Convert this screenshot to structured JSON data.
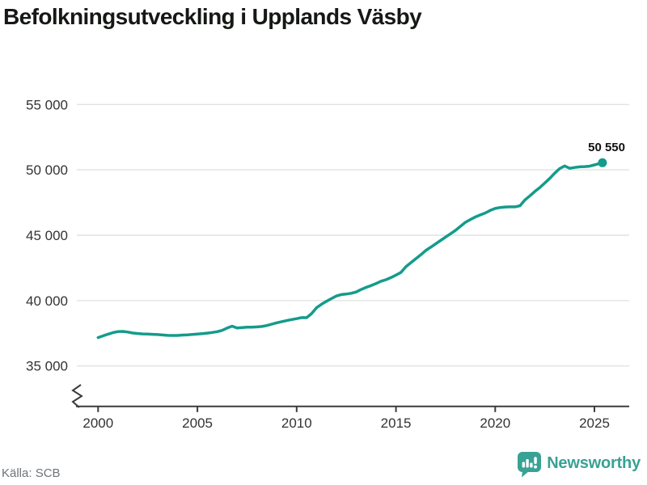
{
  "title": "Befolkningsutveckling i Upplands Väsby",
  "source": "Källa: SCB",
  "branding": {
    "name": "Newsworthy"
  },
  "colors": {
    "line": "#149b8b",
    "grid": "#e2e2e2",
    "axis": "#3b3b3b",
    "tick_text": "#333333",
    "title": "#151815",
    "value_label": "#111111",
    "source_text": "#6d747a",
    "brand": "#38a294"
  },
  "chart_data": {
    "type": "line",
    "title": "Befolkningsutveckling i Upplands Väsby",
    "xlabel": "",
    "ylabel": "",
    "grid": true,
    "axis_break_at_y_axis_bottom": true,
    "x_range": [
      2000,
      2025.4
    ],
    "ylim": [
      35000,
      55000
    ],
    "x_ticks": [
      2000,
      2005,
      2010,
      2015,
      2020,
      2025
    ],
    "x_tick_labels": [
      "2000",
      "2005",
      "2010",
      "2015",
      "2020",
      "2025"
    ],
    "y_ticks": [
      35000,
      40000,
      45000,
      50000,
      55000
    ],
    "y_tick_labels": [
      "35 000",
      "40 000",
      "45 000",
      "50 000",
      "55 000"
    ],
    "end_label": "50 550",
    "end_value": 50550,
    "points": [
      [
        2000,
        37170
      ],
      [
        2000.25,
        37300
      ],
      [
        2000.5,
        37430
      ],
      [
        2000.75,
        37550
      ],
      [
        2001,
        37630
      ],
      [
        2001.25,
        37640
      ],
      [
        2001.5,
        37590
      ],
      [
        2001.75,
        37520
      ],
      [
        2002,
        37480
      ],
      [
        2002.25,
        37450
      ],
      [
        2002.5,
        37440
      ],
      [
        2002.75,
        37420
      ],
      [
        2003,
        37400
      ],
      [
        2003.25,
        37370
      ],
      [
        2003.5,
        37340
      ],
      [
        2003.75,
        37330
      ],
      [
        2004,
        37330
      ],
      [
        2004.25,
        37360
      ],
      [
        2004.5,
        37380
      ],
      [
        2004.75,
        37410
      ],
      [
        2005,
        37440
      ],
      [
        2005.25,
        37470
      ],
      [
        2005.5,
        37510
      ],
      [
        2005.75,
        37560
      ],
      [
        2006,
        37620
      ],
      [
        2006.25,
        37720
      ],
      [
        2006.5,
        37900
      ],
      [
        2006.75,
        38040
      ],
      [
        2007,
        37900
      ],
      [
        2007.25,
        37940
      ],
      [
        2007.5,
        37960
      ],
      [
        2007.75,
        37970
      ],
      [
        2008,
        37990
      ],
      [
        2008.25,
        38020
      ],
      [
        2008.5,
        38090
      ],
      [
        2008.75,
        38200
      ],
      [
        2009,
        38300
      ],
      [
        2009.25,
        38390
      ],
      [
        2009.5,
        38470
      ],
      [
        2009.75,
        38550
      ],
      [
        2010,
        38620
      ],
      [
        2010.25,
        38700
      ],
      [
        2010.5,
        38690
      ],
      [
        2010.75,
        39000
      ],
      [
        2011,
        39450
      ],
      [
        2011.25,
        39720
      ],
      [
        2011.5,
        39940
      ],
      [
        2011.75,
        40150
      ],
      [
        2012,
        40350
      ],
      [
        2012.25,
        40460
      ],
      [
        2012.5,
        40500
      ],
      [
        2012.75,
        40560
      ],
      [
        2013,
        40660
      ],
      [
        2013.25,
        40850
      ],
      [
        2013.5,
        41010
      ],
      [
        2013.75,
        41150
      ],
      [
        2014,
        41300
      ],
      [
        2014.25,
        41480
      ],
      [
        2014.5,
        41600
      ],
      [
        2014.75,
        41760
      ],
      [
        2015,
        41950
      ],
      [
        2015.25,
        42150
      ],
      [
        2015.5,
        42590
      ],
      [
        2015.75,
        42900
      ],
      [
        2016,
        43200
      ],
      [
        2016.25,
        43500
      ],
      [
        2016.5,
        43830
      ],
      [
        2016.75,
        44080
      ],
      [
        2017,
        44340
      ],
      [
        2017.25,
        44600
      ],
      [
        2017.5,
        44860
      ],
      [
        2017.75,
        45110
      ],
      [
        2018,
        45370
      ],
      [
        2018.25,
        45680
      ],
      [
        2018.5,
        45990
      ],
      [
        2018.75,
        46200
      ],
      [
        2019,
        46400
      ],
      [
        2019.25,
        46550
      ],
      [
        2019.5,
        46700
      ],
      [
        2019.75,
        46900
      ],
      [
        2020,
        47050
      ],
      [
        2020.25,
        47120
      ],
      [
        2020.5,
        47160
      ],
      [
        2020.75,
        47170
      ],
      [
        2021,
        47170
      ],
      [
        2021.25,
        47260
      ],
      [
        2021.5,
        47700
      ],
      [
        2021.75,
        48020
      ],
      [
        2022,
        48350
      ],
      [
        2022.25,
        48650
      ],
      [
        2022.5,
        49000
      ],
      [
        2022.75,
        49350
      ],
      [
        2023,
        49750
      ],
      [
        2023.25,
        50100
      ],
      [
        2023.5,
        50300
      ],
      [
        2023.75,
        50120
      ],
      [
        2024,
        50180
      ],
      [
        2024.25,
        50230
      ],
      [
        2024.5,
        50250
      ],
      [
        2024.75,
        50280
      ],
      [
        2025,
        50380
      ],
      [
        2025.4,
        50550
      ]
    ]
  }
}
